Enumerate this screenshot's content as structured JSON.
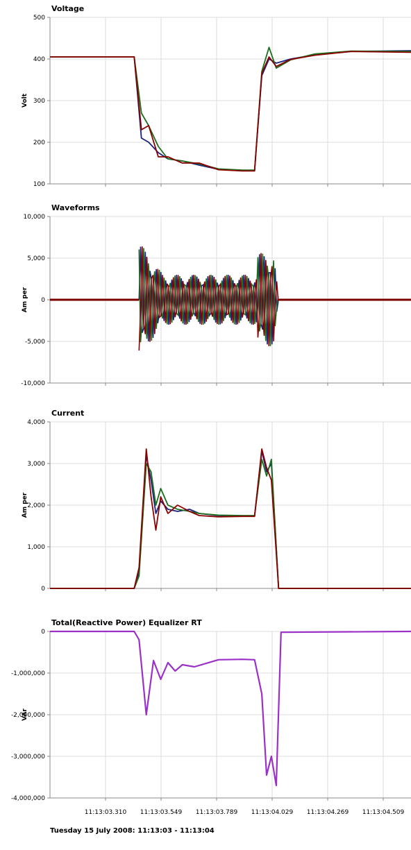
{
  "chart_data": [
    {
      "type": "line",
      "title": "Voltage",
      "ylabel": "Volt",
      "ylim": [
        100,
        500
      ],
      "yticks": [
        "500",
        "400",
        "300",
        "200",
        "100"
      ],
      "colors": [
        "#1a237e",
        "#1b6e1b",
        "#8b0000"
      ],
      "series": [
        {
          "values": [
            [
              0,
              405
            ],
            [
              0.35,
              405
            ],
            [
              0.38,
              210
            ],
            [
              0.41,
              200
            ],
            [
              0.45,
              175
            ],
            [
              0.49,
              160
            ],
            [
              0.55,
              155
            ],
            [
              0.62,
              145
            ],
            [
              0.7,
              135
            ],
            [
              0.8,
              132
            ],
            [
              0.85,
              132
            ],
            [
              0.88,
              360
            ],
            [
              0.91,
              400
            ],
            [
              0.94,
              390
            ],
            [
              1.0,
              400
            ],
            [
              1.1,
              410
            ],
            [
              1.25,
              418
            ],
            [
              1.5,
              420
            ]
          ]
        },
        {
          "values": [
            [
              0,
              405
            ],
            [
              0.35,
              405
            ],
            [
              0.38,
              270
            ],
            [
              0.41,
              240
            ],
            [
              0.45,
              190
            ],
            [
              0.49,
              160
            ],
            [
              0.55,
              155
            ],
            [
              0.62,
              148
            ],
            [
              0.7,
              136
            ],
            [
              0.8,
              133
            ],
            [
              0.85,
              133
            ],
            [
              0.88,
              370
            ],
            [
              0.91,
              428
            ],
            [
              0.94,
              378
            ],
            [
              1.0,
              398
            ],
            [
              1.1,
              412
            ],
            [
              1.25,
              419
            ],
            [
              1.5,
              418
            ]
          ]
        },
        {
          "values": [
            [
              0,
              405
            ],
            [
              0.35,
              405
            ],
            [
              0.38,
              230
            ],
            [
              0.41,
              240
            ],
            [
              0.45,
              165
            ],
            [
              0.49,
              165
            ],
            [
              0.55,
              150
            ],
            [
              0.62,
              150
            ],
            [
              0.7,
              134
            ],
            [
              0.8,
              131
            ],
            [
              0.85,
              131
            ],
            [
              0.88,
              365
            ],
            [
              0.91,
              405
            ],
            [
              0.94,
              382
            ],
            [
              1.0,
              399
            ],
            [
              1.1,
              409
            ],
            [
              1.25,
              418
            ],
            [
              1.5,
              416
            ]
          ]
        }
      ]
    },
    {
      "type": "line",
      "title": "Waveforms",
      "ylabel": "Am per",
      "ylim": [
        -10000,
        10000
      ],
      "yticks": [
        "10,000",
        "5,000",
        "0",
        "-5,000",
        "-10,000"
      ],
      "colors": [
        "#1a237e",
        "#1b6e1b",
        "#8b0000"
      ],
      "series": [
        {
          "values": [
            [
              0,
              0
            ],
            [
              0.35,
              0
            ],
            [
              0.4,
              6000
            ],
            [
              0.45,
              3200
            ],
            [
              0.55,
              3000
            ],
            [
              0.85,
              3000
            ],
            [
              0.88,
              6000
            ],
            [
              0.92,
              5500
            ],
            [
              0.95,
              0
            ],
            [
              1.5,
              0
            ]
          ]
        },
        {
          "values": [
            [
              0,
              0
            ],
            [
              0.35,
              0
            ],
            [
              0.4,
              6500
            ],
            [
              0.45,
              3300
            ],
            [
              0.55,
              3000
            ],
            [
              0.85,
              3000
            ],
            [
              0.88,
              6400
            ],
            [
              0.92,
              6000
            ],
            [
              0.95,
              0
            ],
            [
              1.5,
              0
            ]
          ]
        },
        {
          "values": [
            [
              0,
              0
            ],
            [
              0.35,
              0
            ],
            [
              0.4,
              -6800
            ],
            [
              0.45,
              -3400
            ],
            [
              0.55,
              -3000
            ],
            [
              0.85,
              -3000
            ],
            [
              0.88,
              -6200
            ],
            [
              0.92,
              -6300
            ],
            [
              0.95,
              0
            ],
            [
              1.5,
              0
            ]
          ]
        }
      ]
    },
    {
      "type": "line",
      "title": "Current",
      "ylabel": "Am per",
      "ylim": [
        0,
        4000
      ],
      "yticks": [
        "4,000",
        "3,000",
        "2,000",
        "1,000",
        "0"
      ],
      "colors": [
        "#1a237e",
        "#1b6e1b",
        "#8b0000"
      ],
      "series": [
        {
          "values": [
            [
              0,
              0
            ],
            [
              0.35,
              0
            ],
            [
              0.37,
              400
            ],
            [
              0.4,
              3200
            ],
            [
              0.42,
              2600
            ],
            [
              0.44,
              1800
            ],
            [
              0.46,
              2100
            ],
            [
              0.49,
              1900
            ],
            [
              0.53,
              1850
            ],
            [
              0.58,
              1900
            ],
            [
              0.62,
              1800
            ],
            [
              0.7,
              1750
            ],
            [
              0.8,
              1740
            ],
            [
              0.85,
              1740
            ],
            [
              0.88,
              3300
            ],
            [
              0.9,
              2800
            ],
            [
              0.92,
              3000
            ],
            [
              0.95,
              0
            ],
            [
              1.5,
              0
            ]
          ]
        },
        {
          "values": [
            [
              0,
              0
            ],
            [
              0.35,
              0
            ],
            [
              0.37,
              300
            ],
            [
              0.4,
              3000
            ],
            [
              0.42,
              2800
            ],
            [
              0.44,
              2000
            ],
            [
              0.46,
              2400
            ],
            [
              0.49,
              2000
            ],
            [
              0.53,
              1900
            ],
            [
              0.58,
              1850
            ],
            [
              0.62,
              1800
            ],
            [
              0.7,
              1760
            ],
            [
              0.8,
              1750
            ],
            [
              0.85,
              1750
            ],
            [
              0.88,
              3100
            ],
            [
              0.9,
              2700
            ],
            [
              0.92,
              3100
            ],
            [
              0.95,
              0
            ],
            [
              1.5,
              0
            ]
          ]
        },
        {
          "values": [
            [
              0,
              0
            ],
            [
              0.35,
              0
            ],
            [
              0.37,
              500
            ],
            [
              0.4,
              3350
            ],
            [
              0.42,
              2200
            ],
            [
              0.44,
              1400
            ],
            [
              0.46,
              2200
            ],
            [
              0.49,
              1800
            ],
            [
              0.53,
              2000
            ],
            [
              0.58,
              1850
            ],
            [
              0.62,
              1750
            ],
            [
              0.7,
              1720
            ],
            [
              0.8,
              1730
            ],
            [
              0.85,
              1730
            ],
            [
              0.88,
              3350
            ],
            [
              0.9,
              2900
            ],
            [
              0.92,
              2600
            ],
            [
              0.95,
              0
            ],
            [
              1.5,
              0
            ]
          ]
        }
      ]
    },
    {
      "type": "line",
      "title": "Total(Reactive Power) Equalizer RT",
      "ylabel": "VAr",
      "ylim": [
        -4000000,
        0
      ],
      "yticks": [
        "0",
        "-1,000,000",
        "-2,000,000",
        "-3,000,000",
        "-4,000,000"
      ],
      "colors": [
        "#9b30c8"
      ],
      "series": [
        {
          "values": [
            [
              0,
              0
            ],
            [
              0.35,
              0
            ],
            [
              0.37,
              -200000
            ],
            [
              0.4,
              -2000000
            ],
            [
              0.43,
              -700000
            ],
            [
              0.46,
              -1150000
            ],
            [
              0.49,
              -750000
            ],
            [
              0.52,
              -950000
            ],
            [
              0.55,
              -800000
            ],
            [
              0.6,
              -850000
            ],
            [
              0.7,
              -680000
            ],
            [
              0.8,
              -670000
            ],
            [
              0.85,
              -680000
            ],
            [
              0.88,
              -1500000
            ],
            [
              0.9,
              -3450000
            ],
            [
              0.92,
              -3000000
            ],
            [
              0.94,
              -3700000
            ],
            [
              0.96,
              -20000
            ],
            [
              1.5,
              0
            ]
          ]
        }
      ]
    }
  ],
  "x_axis": {
    "ticks": [
      "11:13:03.310",
      "11:13:03.549",
      "11:13:03.789",
      "11:13:04.029",
      "11:13:04.269",
      "11:13:04.509"
    ]
  },
  "footer": "Tuesday 15 July 2008: 11:13:03 - 11:13:04"
}
